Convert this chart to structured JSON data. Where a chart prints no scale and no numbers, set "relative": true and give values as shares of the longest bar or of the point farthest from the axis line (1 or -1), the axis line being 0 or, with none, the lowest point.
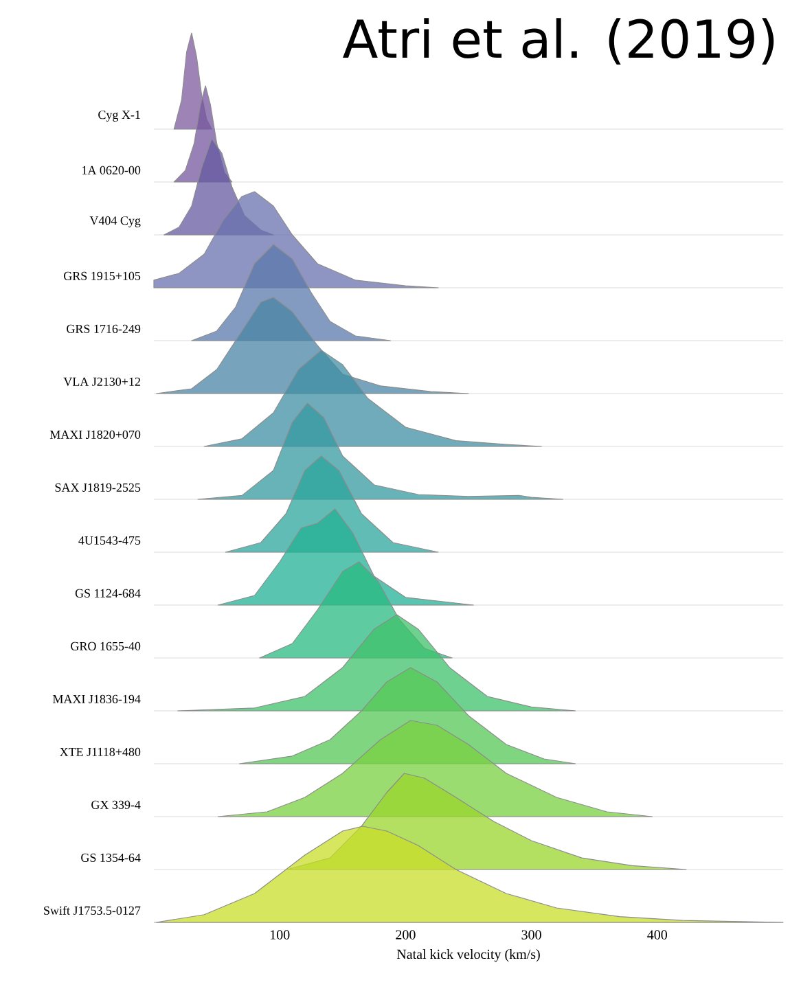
{
  "chart_data": [
    {
      "type": "area",
      "title": "Atri et al. (2019)",
      "ylabel": "Cyg X-1",
      "relative": true,
      "color": "#7d5a9e",
      "xlim": [
        0,
        500
      ],
      "tick_labels": false,
      "x": [
        16,
        22,
        26,
        30,
        34,
        38,
        42,
        46
      ],
      "values": [
        0,
        0.3,
        0.8,
        1,
        0.75,
        0.35,
        0.1,
        0
      ]
    },
    {
      "type": "area",
      "ylabel": "1A 0620-00",
      "relative": true,
      "color": "#74579e",
      "xlim": [
        0,
        500
      ],
      "tick_labels": false,
      "x": [
        16,
        25,
        32,
        37,
        41,
        45,
        50,
        56,
        62
      ],
      "values": [
        0,
        0.12,
        0.4,
        0.8,
        1,
        0.8,
        0.4,
        0.1,
        0
      ]
    },
    {
      "type": "area",
      "ylabel": "V404 Cyg",
      "relative": true,
      "color": "#665aa0",
      "xlim": [
        0,
        500
      ],
      "tick_labels": false,
      "x": [
        8,
        20,
        30,
        38,
        46,
        54,
        62,
        72,
        85,
        95
      ],
      "values": [
        0,
        0.08,
        0.3,
        0.7,
        1,
        0.85,
        0.5,
        0.2,
        0.05,
        0
      ]
    },
    {
      "type": "area",
      "ylabel": "GRS 1915+105",
      "relative": true,
      "color": "#6a72ad",
      "xlim": [
        0,
        500
      ],
      "tick_labels": false,
      "x": [
        0,
        20,
        40,
        55,
        70,
        80,
        95,
        110,
        130,
        160,
        200,
        226
      ],
      "values": [
        0.08,
        0.15,
        0.35,
        0.7,
        0.95,
        1,
        0.85,
        0.55,
        0.25,
        0.08,
        0.02,
        0
      ]
    },
    {
      "type": "area",
      "ylabel": "GRS 1716-249",
      "relative": true,
      "color": "#5a7aab",
      "xlim": [
        0,
        500
      ],
      "tick_labels": false,
      "x": [
        30,
        50,
        65,
        80,
        95,
        110,
        125,
        140,
        160,
        188
      ],
      "values": [
        0,
        0.1,
        0.35,
        0.8,
        1,
        0.85,
        0.5,
        0.2,
        0.05,
        0
      ]
    },
    {
      "type": "area",
      "ylabel": "VLA J2130+12",
      "relative": true,
      "color": "#4a84a6",
      "xlim": [
        0,
        500
      ],
      "tick_labels": false,
      "x": [
        2,
        30,
        50,
        70,
        85,
        95,
        110,
        130,
        150,
        180,
        220,
        250
      ],
      "values": [
        0,
        0.05,
        0.25,
        0.65,
        0.95,
        1,
        0.85,
        0.5,
        0.2,
        0.08,
        0.02,
        0
      ]
    },
    {
      "type": "area",
      "ylabel": "MAXI J1820+070",
      "relative": true,
      "color": "#3f8fa4",
      "xlim": [
        0,
        500
      ],
      "tick_labels": false,
      "x": [
        40,
        70,
        95,
        115,
        133,
        150,
        170,
        200,
        240,
        280,
        308
      ],
      "values": [
        0,
        0.08,
        0.35,
        0.8,
        1,
        0.85,
        0.5,
        0.2,
        0.06,
        0.02,
        0
      ]
    },
    {
      "type": "area",
      "ylabel": "SAX J1819-2525",
      "relative": true,
      "color": "#3599a0",
      "xlim": [
        0,
        500
      ],
      "tick_labels": false,
      "x": [
        35,
        70,
        95,
        110,
        122,
        135,
        150,
        175,
        210,
        250,
        290,
        300,
        325
      ],
      "values": [
        0,
        0.04,
        0.3,
        0.8,
        1,
        0.85,
        0.45,
        0.15,
        0.05,
        0.03,
        0.04,
        0.02,
        0
      ]
    },
    {
      "type": "area",
      "ylabel": "4U1543-475",
      "relative": true,
      "color": "#2ba59c",
      "xlim": [
        0,
        500
      ],
      "tick_labels": false,
      "x": [
        57,
        85,
        105,
        120,
        133,
        147,
        165,
        190,
        226
      ],
      "values": [
        0,
        0.1,
        0.4,
        0.85,
        1,
        0.85,
        0.4,
        0.1,
        0
      ]
    },
    {
      "type": "area",
      "ylabel": "GS 1124-684",
      "relative": true,
      "color": "#22b094",
      "xlim": [
        0,
        500
      ],
      "tick_labels": false,
      "x": [
        51,
        80,
        100,
        117,
        130,
        144,
        158,
        175,
        200,
        254
      ],
      "values": [
        0,
        0.1,
        0.45,
        0.8,
        0.85,
        1,
        0.75,
        0.3,
        0.08,
        0
      ]
    },
    {
      "type": "area",
      "ylabel": "GRO 1655-40",
      "relative": true,
      "color": "#2ab980",
      "xlim": [
        0,
        500
      ],
      "tick_labels": false,
      "x": [
        84,
        110,
        130,
        150,
        163,
        178,
        195,
        215,
        237
      ],
      "values": [
        0,
        0.15,
        0.5,
        0.9,
        1,
        0.8,
        0.4,
        0.1,
        0
      ]
    },
    {
      "type": "area",
      "ylabel": "MAXI J1836-194",
      "relative": true,
      "color": "#3fc26a",
      "xlim": [
        0,
        500
      ],
      "tick_labels": false,
      "x": [
        19,
        80,
        120,
        150,
        175,
        193,
        210,
        235,
        265,
        300,
        335
      ],
      "values": [
        0,
        0.03,
        0.15,
        0.45,
        0.85,
        1,
        0.85,
        0.45,
        0.15,
        0.04,
        0
      ]
    },
    {
      "type": "area",
      "ylabel": "XTE J1118+480",
      "relative": true,
      "color": "#55c855",
      "xlim": [
        0,
        500
      ],
      "tick_labels": false,
      "x": [
        68,
        110,
        140,
        165,
        185,
        204,
        225,
        250,
        280,
        310,
        335
      ],
      "values": [
        0,
        0.08,
        0.25,
        0.55,
        0.85,
        1,
        0.85,
        0.5,
        0.2,
        0.05,
        0
      ]
    },
    {
      "type": "area",
      "ylabel": "GX 339-4",
      "relative": true,
      "color": "#78d040",
      "xlim": [
        0,
        500
      ],
      "tick_labels": false,
      "x": [
        51,
        90,
        120,
        150,
        180,
        204,
        225,
        250,
        280,
        320,
        360,
        396
      ],
      "values": [
        0,
        0.05,
        0.2,
        0.45,
        0.8,
        1,
        0.95,
        0.75,
        0.45,
        0.2,
        0.05,
        0
      ]
    },
    {
      "type": "area",
      "ylabel": "GS 1354-64",
      "relative": true,
      "color": "#9ad62c",
      "xlim": [
        0,
        500
      ],
      "tick_labels": false,
      "x": [
        106,
        140,
        165,
        185,
        199,
        215,
        240,
        270,
        300,
        340,
        380,
        423
      ],
      "values": [
        0,
        0.12,
        0.45,
        0.8,
        1,
        0.95,
        0.75,
        0.5,
        0.3,
        0.12,
        0.04,
        0
      ]
    },
    {
      "type": "area",
      "ylabel": "Swift J1753.5-0127",
      "xlabel": "Natal kick velocity (km/s)",
      "relative": true,
      "color": "#c8dd2a",
      "xlim": [
        0,
        500
      ],
      "xticks": [
        100,
        200,
        300,
        400
      ],
      "tick_labels": "x",
      "x": [
        2,
        40,
        80,
        120,
        150,
        166,
        185,
        210,
        240,
        280,
        320,
        370,
        420,
        500
      ],
      "values": [
        0,
        0.08,
        0.3,
        0.7,
        0.95,
        1,
        0.95,
        0.8,
        0.55,
        0.3,
        0.15,
        0.06,
        0.02,
        0
      ]
    }
  ]
}
